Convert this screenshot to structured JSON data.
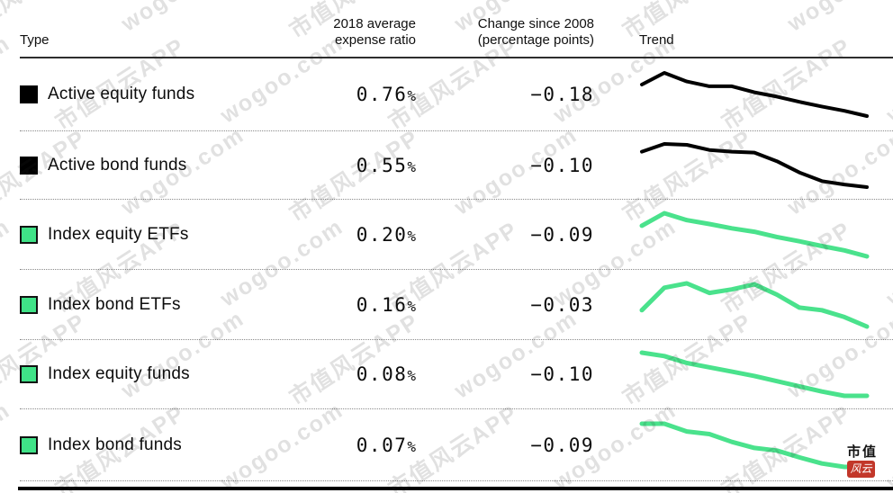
{
  "header": {
    "type": "Type",
    "ratio_line1": "2018 average",
    "ratio_line2": "expense ratio",
    "change_line1": "Change since 2008",
    "change_line2": "(percentage points)",
    "trend": "Trend"
  },
  "rows": [
    {
      "label": "Active equity funds",
      "swatch": "black",
      "ratio": "0.76",
      "pct": "%",
      "change": "−0.18"
    },
    {
      "label": "Active bond funds",
      "swatch": "black",
      "ratio": "0.55",
      "pct": "%",
      "change": "−0.10"
    },
    {
      "label": "Index equity ETFs",
      "swatch": "green",
      "ratio": "0.20",
      "pct": "%",
      "change": "−0.09"
    },
    {
      "label": "Index bond ETFs",
      "swatch": "green",
      "ratio": "0.16",
      "pct": "%",
      "change": "−0.03"
    },
    {
      "label": "Index equity funds",
      "swatch": "green",
      "ratio": "0.08",
      "pct": "%",
      "change": "−0.10"
    },
    {
      "label": "Index bond funds",
      "swatch": "green",
      "ratio": "0.07",
      "pct": "%",
      "change": "−0.09"
    }
  ],
  "chart_data": {
    "type": "table",
    "columns": [
      "Type",
      "2018 average expense ratio",
      "Change since 2008 (percentage points)",
      "Trend"
    ],
    "legend_position": "none",
    "grid": false,
    "trend_note": "Each row has an unlabeled sparkline covering 2008-2018; values below are relative levels (1 = row max, 0 = row min) read from the plot.",
    "rows": [
      {
        "type": "Active equity funds",
        "expense_ratio_2018_pct": 0.76,
        "change_since_2008_pp": -0.18,
        "color": "#000000",
        "trend_relative": [
          0.73,
          1.0,
          0.8,
          0.69,
          0.69,
          0.55,
          0.45,
          0.33,
          0.22,
          0.12,
          0.0
        ]
      },
      {
        "type": "Active bond funds",
        "expense_ratio_2018_pct": 0.55,
        "change_since_2008_pp": -0.1,
        "color": "#000000",
        "trend_relative": [
          0.82,
          1.0,
          0.98,
          0.86,
          0.82,
          0.8,
          0.6,
          0.34,
          0.14,
          0.06,
          0.0
        ]
      },
      {
        "type": "Index equity ETFs",
        "expense_ratio_2018_pct": 0.2,
        "change_since_2008_pp": -0.09,
        "color": "#4ae28c",
        "trend_relative": [
          0.71,
          1.0,
          0.84,
          0.75,
          0.65,
          0.57,
          0.45,
          0.35,
          0.24,
          0.14,
          0.0
        ]
      },
      {
        "type": "Index bond ETFs",
        "expense_ratio_2018_pct": 0.16,
        "change_since_2008_pp": -0.03,
        "color": "#4ae28c",
        "trend_relative": [
          0.38,
          0.9,
          1.0,
          0.78,
          0.86,
          0.98,
          0.74,
          0.44,
          0.38,
          0.22,
          0.0
        ]
      },
      {
        "type": "Index equity funds",
        "expense_ratio_2018_pct": 0.08,
        "change_since_2008_pp": -0.1,
        "color": "#4ae28c",
        "trend_relative": [
          1.0,
          0.92,
          0.76,
          0.66,
          0.56,
          0.46,
          0.34,
          0.22,
          0.1,
          0.0,
          0.0
        ]
      },
      {
        "type": "Index bond funds",
        "expense_ratio_2018_pct": 0.07,
        "change_since_2008_pp": -0.09,
        "color": "#4ae28c",
        "trend_relative": [
          1.0,
          1.0,
          0.82,
          0.76,
          0.58,
          0.44,
          0.38,
          0.22,
          0.08,
          0.0,
          0.0
        ]
      }
    ]
  },
  "watermark": {
    "text1": "市值风云APP",
    "text2": "wogoo.com"
  },
  "logo": {
    "top": "市值",
    "stamp": "风云"
  },
  "colors": {
    "green_line": "#4ae28c",
    "green_fill": "#3fe287",
    "black_line": "#000000",
    "logo_red": "#c2372a"
  }
}
